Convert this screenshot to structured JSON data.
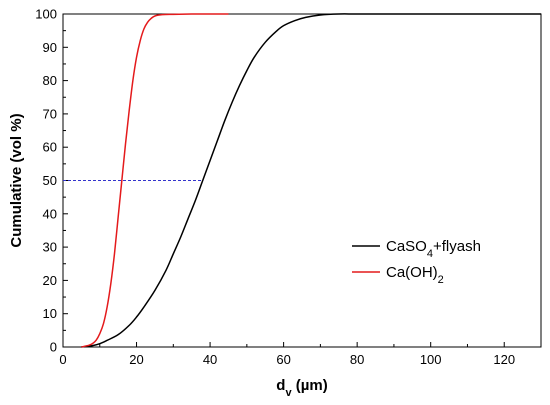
{
  "chart_data": {
    "type": "line",
    "xlabel": {
      "main": "d",
      "sub": "v",
      "unit": " (µm)"
    },
    "ylabel": "Cumulative (vol %)",
    "xlim": [
      0,
      130
    ],
    "ylim": [
      0,
      100
    ],
    "xticks": [
      0,
      20,
      40,
      60,
      80,
      100,
      120
    ],
    "yticks": [
      0,
      10,
      20,
      30,
      40,
      50,
      60,
      70,
      80,
      90,
      100
    ],
    "grid": false,
    "legend_position": "center-right",
    "series": [
      {
        "name": "CaSO4+flyash",
        "legend": {
          "pre": "CaSO",
          "sub": "4",
          "post": "+flyash"
        },
        "color": "#000000",
        "x": [
          5,
          8,
          10,
          12,
          15,
          18,
          20,
          22,
          25,
          28,
          30,
          32,
          34,
          36,
          38,
          40,
          42,
          44,
          46,
          48,
          50,
          52,
          55,
          58,
          60,
          63,
          66,
          70,
          75,
          80,
          90,
          100,
          110,
          120,
          130
        ],
        "y": [
          0,
          0.4,
          1,
          2,
          3.7,
          6.5,
          9,
          12,
          17,
          23,
          28,
          33,
          38.5,
          44,
          50,
          56,
          62,
          68,
          73.5,
          78.5,
          83,
          87,
          91.5,
          94.8,
          96.5,
          98,
          99,
          99.7,
          100,
          100,
          100,
          100,
          100,
          100,
          100
        ]
      },
      {
        "name": "Ca(OH)2",
        "legend": {
          "pre": "Ca(OH)",
          "sub": "2",
          "post": ""
        },
        "color": "#e41a1c",
        "x": [
          5,
          7,
          8,
          9,
          10,
          11,
          12,
          13,
          14,
          15,
          16,
          17,
          18,
          19,
          20,
          21,
          22,
          23,
          24,
          25,
          27,
          30,
          35,
          40,
          45
        ],
        "y": [
          0,
          0.5,
          1,
          2,
          4,
          7,
          12,
          19,
          28,
          39,
          50,
          61,
          71,
          80,
          87,
          92,
          95.5,
          97.5,
          98.7,
          99.4,
          99.8,
          99.9,
          100,
          100,
          100
        ]
      }
    ],
    "annotations": [
      {
        "type": "dashed-line",
        "color": "#3333cc",
        "y": 50,
        "x_from": 0,
        "x_to": 38
      }
    ]
  }
}
